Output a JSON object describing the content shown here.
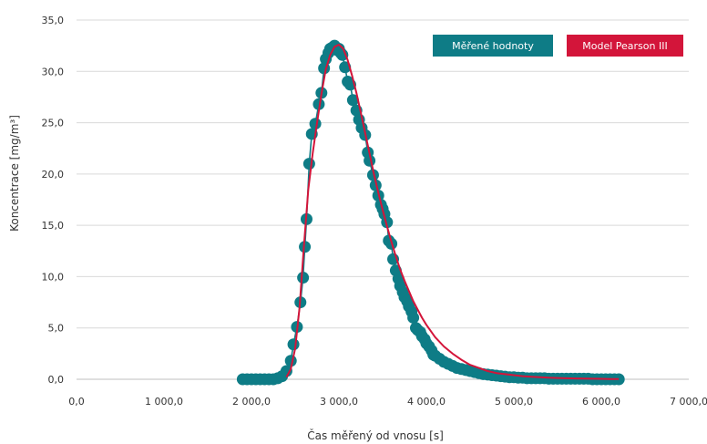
{
  "chart_data": {
    "type": "line",
    "xlabel": "Čas měřený od vnosu [s]",
    "ylabel": "Koncentrace [mg/m³]",
    "xlim": [
      0,
      7000
    ],
    "ylim": [
      0,
      35
    ],
    "x_ticks": [
      "0,0",
      "1 000,0",
      "2 000,0",
      "3 000,0",
      "4 000,0",
      "5 000,0",
      "6 000,0",
      "7 000,0"
    ],
    "y_ticks": [
      "0,0",
      "5,0",
      "10,0",
      "15,0",
      "20,0",
      "25,0",
      "30,0",
      "35,0"
    ],
    "grid": "horizontal",
    "legend_position": "top-right",
    "colors": {
      "measured": "#0e7c86",
      "model": "#d3153a"
    },
    "series": [
      {
        "name": "Měřené hodnoty",
        "style": "markers+line",
        "x": [
          1900,
          1950,
          2000,
          2050,
          2100,
          2150,
          2200,
          2250,
          2300,
          2350,
          2400,
          2450,
          2480,
          2520,
          2560,
          2590,
          2610,
          2630,
          2660,
          2690,
          2730,
          2770,
          2800,
          2830,
          2850,
          2880,
          2900,
          2920,
          2950,
          2970,
          3000,
          3020,
          3040,
          3070,
          3100,
          3130,
          3160,
          3200,
          3230,
          3260,
          3300,
          3330,
          3350,
          3390,
          3420,
          3450,
          3480,
          3500,
          3520,
          3550,
          3570,
          3600,
          3620,
          3650,
          3680,
          3700,
          3730,
          3750,
          3780,
          3800,
          3830,
          3850,
          3880,
          3900,
          3930,
          3950,
          3980,
          4000,
          4030,
          4060,
          4080,
          4100,
          4150,
          4200,
          4250,
          4300,
          4350,
          4400,
          4450,
          4500,
          4550,
          4600,
          4650,
          4700,
          4750,
          4800,
          4850,
          4900,
          4950,
          5000,
          5050,
          5100,
          5150,
          5200,
          5250,
          5300,
          5350,
          5400,
          5450,
          5500,
          5550,
          5600,
          5650,
          5700,
          5750,
          5800,
          5850,
          5900,
          5950,
          6000,
          6050,
          6100,
          6150,
          6200
        ],
        "y": [
          0.0,
          0.0,
          0.0,
          0.0,
          0.0,
          0.0,
          0.0,
          0.0,
          0.1,
          0.3,
          0.8,
          1.8,
          3.4,
          5.1,
          7.5,
          9.9,
          12.9,
          15.6,
          21.0,
          23.9,
          24.9,
          26.8,
          27.9,
          30.3,
          31.2,
          31.8,
          32.2,
          32.3,
          32.5,
          32.1,
          32.2,
          31.8,
          31.6,
          30.4,
          29.0,
          28.7,
          27.2,
          26.2,
          25.3,
          24.5,
          23.8,
          22.1,
          21.3,
          19.9,
          18.9,
          17.9,
          17.0,
          16.6,
          16.1,
          15.3,
          13.5,
          13.2,
          11.7,
          10.6,
          9.8,
          9.1,
          8.5,
          8.0,
          7.6,
          7.1,
          6.6,
          6.0,
          5.0,
          4.8,
          4.6,
          4.2,
          3.9,
          3.5,
          3.2,
          2.8,
          2.4,
          2.3,
          2.0,
          1.7,
          1.5,
          1.3,
          1.1,
          1.0,
          0.9,
          0.8,
          0.7,
          0.6,
          0.5,
          0.45,
          0.4,
          0.35,
          0.3,
          0.25,
          0.2,
          0.2,
          0.15,
          0.15,
          0.1,
          0.1,
          0.1,
          0.1,
          0.1,
          0.05,
          0.05,
          0.05,
          0.05,
          0.05,
          0.05,
          0.05,
          0.05,
          0.05,
          0.05,
          0.0,
          0.0,
          0.0,
          0.0,
          0.0,
          0.0,
          0.0
        ]
      },
      {
        "name": "Model Pearson III",
        "style": "line",
        "x": [
          2400,
          2450,
          2500,
          2550,
          2600,
          2650,
          2700,
          2750,
          2800,
          2850,
          2900,
          2950,
          3000,
          3050,
          3100,
          3150,
          3200,
          3250,
          3300,
          3350,
          3400,
          3450,
          3500,
          3550,
          3600,
          3650,
          3700,
          3750,
          3800,
          3850,
          3900,
          3950,
          4000,
          4100,
          4200,
          4300,
          4400,
          4500,
          4600,
          4700,
          4800,
          4900,
          5000,
          5100,
          5200,
          5300,
          5400,
          5500,
          5600,
          5700,
          5800,
          5900,
          6000,
          6100,
          6200
        ],
        "y": [
          0.2,
          1.0,
          3.0,
          7.0,
          13.0,
          18.5,
          22.0,
          25.0,
          27.8,
          30.2,
          31.6,
          32.4,
          32.6,
          32.2,
          31.1,
          29.6,
          27.9,
          26.0,
          24.0,
          22.0,
          20.0,
          18.2,
          16.5,
          14.9,
          13.4,
          12.0,
          10.7,
          9.6,
          8.6,
          7.6,
          6.8,
          6.0,
          5.3,
          4.1,
          3.2,
          2.5,
          1.9,
          1.4,
          1.1,
          0.8,
          0.6,
          0.5,
          0.4,
          0.3,
          0.25,
          0.2,
          0.15,
          0.12,
          0.1,
          0.08,
          0.06,
          0.05,
          0.04,
          0.03,
          0.02
        ]
      }
    ]
  }
}
